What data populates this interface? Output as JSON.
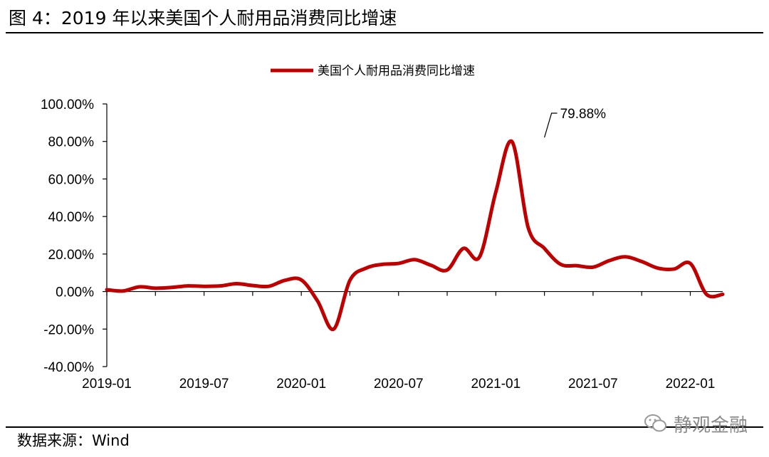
{
  "figure": {
    "title": "图 4：2019 年以来美国个人耐用品消费同比增速",
    "source": "数据来源：Wind",
    "watermark": "静观金融"
  },
  "colors": {
    "series": "#c00000",
    "axis": "#000000"
  },
  "chart_data": {
    "type": "line",
    "title": "",
    "xlabel": "",
    "ylabel": "",
    "legend_position": "top-center",
    "ylim": [
      -40,
      100
    ],
    "y_ticks": [
      -40,
      -20,
      0,
      20,
      40,
      60,
      80,
      100
    ],
    "y_tick_labels": [
      "-40.00%",
      "-20.00%",
      "0.00%",
      "20.00%",
      "40.00%",
      "60.00%",
      "80.00%",
      "100.00%"
    ],
    "x_tick_labels": [
      "2019-01",
      "2019-07",
      "2020-01",
      "2020-07",
      "2021-01",
      "2021-07",
      "2022-01"
    ],
    "x_tick_indices": [
      0,
      6,
      12,
      18,
      24,
      30,
      36
    ],
    "x": [
      "2019-01",
      "2019-02",
      "2019-03",
      "2019-04",
      "2019-05",
      "2019-06",
      "2019-07",
      "2019-08",
      "2019-09",
      "2019-10",
      "2019-11",
      "2019-12",
      "2020-01",
      "2020-02",
      "2020-03",
      "2020-04",
      "2020-05",
      "2020-06",
      "2020-07",
      "2020-08",
      "2020-09",
      "2020-10",
      "2020-11",
      "2020-12",
      "2021-01",
      "2021-02",
      "2021-03",
      "2021-04",
      "2021-05",
      "2021-06",
      "2021-07",
      "2021-08",
      "2021-09",
      "2021-10",
      "2021-11",
      "2021-12",
      "2022-01",
      "2022-02",
      "2022-03"
    ],
    "series": [
      {
        "name": "美国个人耐用品消费同比增速",
        "values": [
          1.0,
          0.3,
          2.5,
          1.8,
          2.2,
          3.0,
          2.8,
          3.0,
          4.2,
          3.2,
          2.8,
          6.0,
          6.2,
          -5.0,
          -20.0,
          6.0,
          12.5,
          14.5,
          15.0,
          17.0,
          14.0,
          11.5,
          23.0,
          18.5,
          53.0,
          79.88,
          34.0,
          23.0,
          14.5,
          13.8,
          13.0,
          16.5,
          18.5,
          16.0,
          12.5,
          12.0,
          15.0,
          -1.5,
          -1.5
        ]
      }
    ],
    "annotations": [
      {
        "label": "79.88%",
        "x": "2021-04",
        "y": 79.88
      }
    ]
  }
}
